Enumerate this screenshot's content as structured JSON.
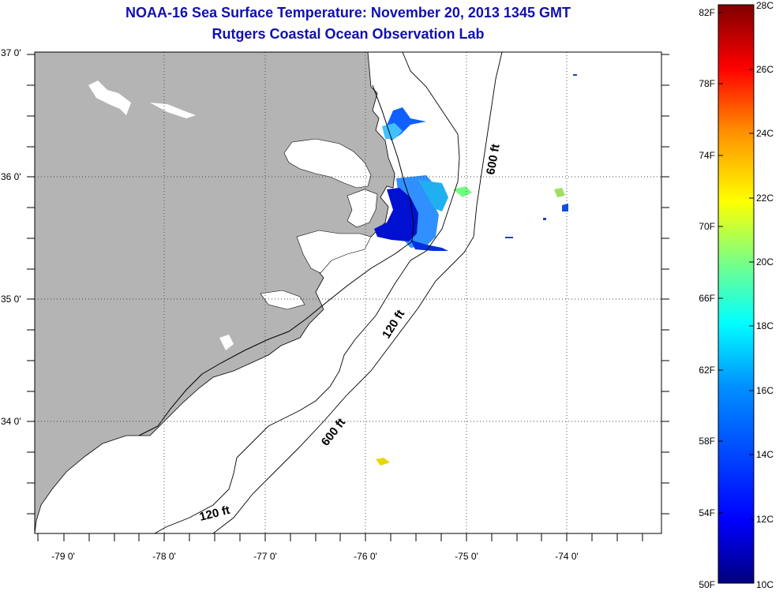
{
  "title": {
    "line1": "NOAA-16 Sea Surface Temperature:  November 20, 2013 1345 GMT",
    "line2": "Rutgers Coastal Ocean Observation Lab"
  },
  "map": {
    "region": "Outer Banks, North Carolina",
    "lon_range": [
      -79.3,
      -73.2
    ],
    "lat_range": [
      33.15,
      37.0
    ],
    "lat_ticks": [
      {
        "value": 37.0,
        "label": "37 0'"
      },
      {
        "value": 36.0,
        "label": "36 0'"
      },
      {
        "value": 35.0,
        "label": "35 0'"
      },
      {
        "value": 34.0,
        "label": "34 0'"
      }
    ],
    "lon_ticks": [
      {
        "value": -79.0,
        "label": "-79 0'"
      },
      {
        "value": -78.0,
        "label": "-78 0'"
      },
      {
        "value": -77.0,
        "label": "-77 0'"
      },
      {
        "value": -76.0,
        "label": "-76 0'"
      },
      {
        "value": -75.0,
        "label": "-75 0'"
      },
      {
        "value": -74.0,
        "label": "-74 0'"
      }
    ],
    "land_color": "#b4b4b4",
    "contour_labels": [
      {
        "text": "600 ft"
      },
      {
        "text": "120 ft"
      },
      {
        "text": "600 ft"
      },
      {
        "text": "120 ft"
      }
    ]
  },
  "colorbar": {
    "f_labels": [
      "82F",
      "78F",
      "74F",
      "70F",
      "66F",
      "62F",
      "58F",
      "54F",
      "50F"
    ],
    "c_labels": [
      "28C",
      "26C",
      "24C",
      "22C",
      "20C",
      "18C",
      "16C",
      "14C",
      "12C",
      "10C"
    ],
    "min_c": 10,
    "max_c": 28,
    "colors": [
      "#000080",
      "#0000ff",
      "#0080ff",
      "#00ffff",
      "#80ff80",
      "#ffff00",
      "#ff8000",
      "#ff0000",
      "#800000"
    ]
  }
}
